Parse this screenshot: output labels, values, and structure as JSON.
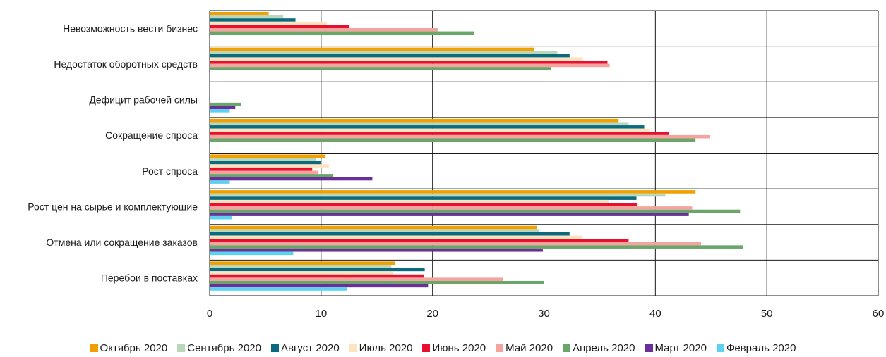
{
  "chart_data": {
    "type": "bar",
    "orientation": "horizontal",
    "categories": [
      "Невозможность вести бизнес",
      "Недостаток оборотных средств",
      "Дефицит рабочей силы",
      "Сокращение спроса",
      "Рост спроса",
      "Рост цен на сырье и комплектующие",
      "Отмена или сокращение заказов",
      "Перебои в поставках"
    ],
    "series": [
      {
        "name": "Октябрь 2020",
        "color": "#f0a000",
        "values": [
          5.3,
          29.1,
          0,
          36.7,
          10.4,
          43.6,
          29.4,
          16.6
        ]
      },
      {
        "name": "Сентябрь 2020",
        "color": "#b9d8b9",
        "values": [
          6.6,
          31.2,
          0,
          37.6,
          9.5,
          40.9,
          29.6,
          16.3
        ]
      },
      {
        "name": "Август 2020",
        "color": "#0b6a7f",
        "values": [
          7.7,
          32.3,
          0,
          39.0,
          10.0,
          38.3,
          32.3,
          19.3
        ]
      },
      {
        "name": "Июль 2020",
        "color": "#fde3bf",
        "values": [
          10.5,
          33.5,
          0,
          39.5,
          10.7,
          35.8,
          33.4,
          16.5
        ]
      },
      {
        "name": "Июнь 2020",
        "color": "#e8102e",
        "values": [
          12.5,
          35.7,
          0,
          41.2,
          9.2,
          38.4,
          37.6,
          19.2
        ]
      },
      {
        "name": "Май 2020",
        "color": "#f4a49e",
        "values": [
          20.5,
          35.9,
          0,
          44.9,
          9.7,
          43.3,
          44.1,
          26.3
        ]
      },
      {
        "name": "Апрель 2020",
        "color": "#6aa56a",
        "values": [
          23.7,
          30.6,
          2.8,
          43.6,
          11.1,
          47.6,
          47.9,
          30.0
        ]
      },
      {
        "name": "Март 2020",
        "color": "#6b2f9a",
        "values": [
          0,
          0,
          2.3,
          0,
          14.6,
          43.0,
          29.9,
          19.6
        ]
      },
      {
        "name": "Февраль 2020",
        "color": "#5ad2f0",
        "values": [
          0,
          0,
          1.8,
          0,
          1.8,
          2.0,
          7.5,
          12.3
        ]
      }
    ],
    "xlim": [
      0,
      60
    ],
    "xticks": [
      "0",
      "10",
      "20",
      "30",
      "40",
      "50",
      "60"
    ],
    "grid": true,
    "legend_position": "bottom"
  }
}
